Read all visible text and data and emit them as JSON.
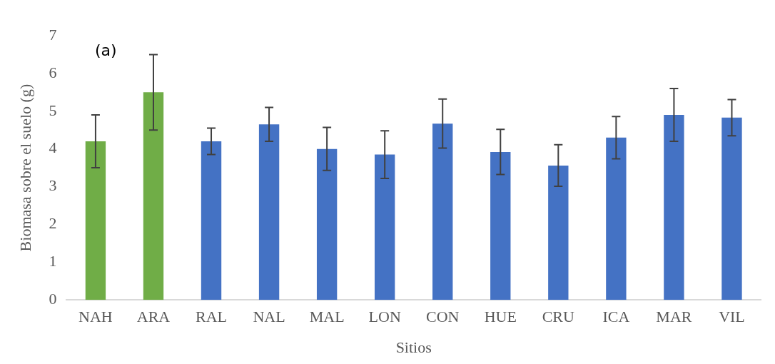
{
  "chart_data": {
    "type": "bar",
    "xlabel": "Sitios",
    "ylabel": "Biomasa sobre el suelo (g)",
    "annotations": [
      "(a)"
    ],
    "categories": [
      "NAH",
      "ARA",
      "RAL",
      "NAL",
      "MAL",
      "LON",
      "CON",
      "HUE",
      "CRU",
      "ICA",
      "MAR",
      "VIL"
    ],
    "values": [
      4.2,
      5.5,
      4.2,
      4.65,
      4.0,
      3.85,
      4.67,
      3.92,
      3.56,
      4.3,
      4.9,
      4.83
    ],
    "errors": [
      0.7,
      1.0,
      0.35,
      0.45,
      0.57,
      0.63,
      0.65,
      0.6,
      0.55,
      0.56,
      0.7,
      0.48
    ],
    "colors": [
      "#70ad47",
      "#70ad47",
      "#4472c4",
      "#4472c4",
      "#4472c4",
      "#4472c4",
      "#4472c4",
      "#4472c4",
      "#4472c4",
      "#4472c4",
      "#4472c4",
      "#4472c4"
    ],
    "ylim": [
      0,
      7
    ],
    "yticks": [
      0,
      1,
      2,
      3,
      4,
      5,
      6,
      7
    ],
    "grid": false,
    "legend": false
  }
}
